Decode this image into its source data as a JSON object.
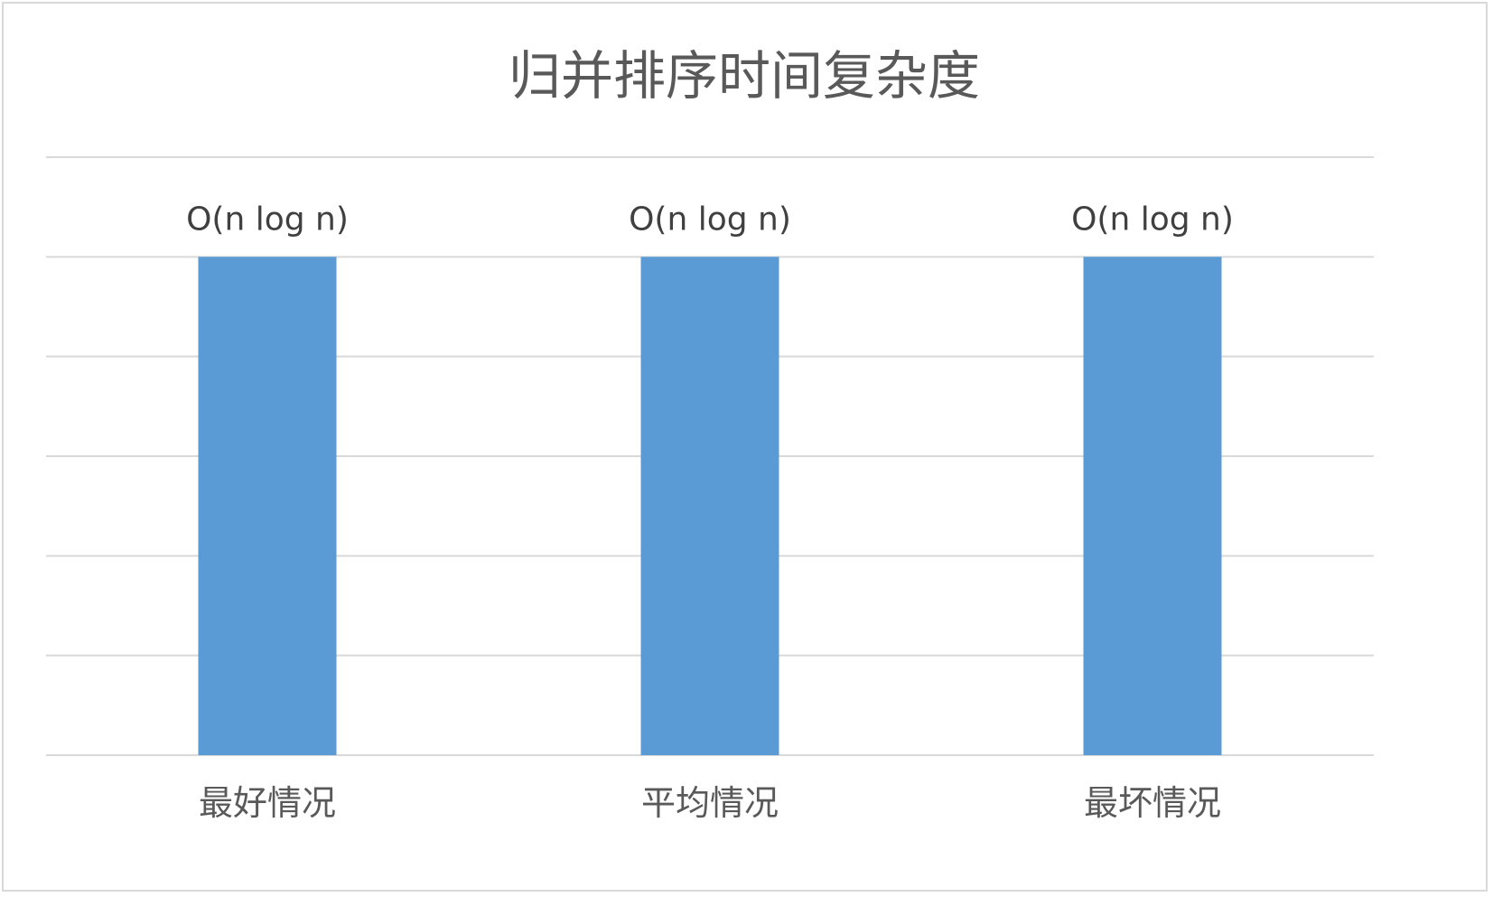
{
  "chart_data": {
    "type": "bar",
    "title": "归并排序时间复杂度",
    "categories": [
      "最好情况",
      "平均情况",
      "最坏情况"
    ],
    "values": [
      1,
      1,
      1
    ],
    "data_labels": [
      "O(n log n)",
      "O(n log n)",
      "O(n log n)"
    ],
    "ylim": [
      0,
      1.2
    ],
    "ytick_count": 6,
    "grid": true,
    "legend": "none",
    "xlabel": "",
    "ylabel": "",
    "colors": {
      "bar": "#5b9bd5",
      "grid": "#d9d9d9",
      "title": "#595959",
      "label": "#404040"
    }
  }
}
